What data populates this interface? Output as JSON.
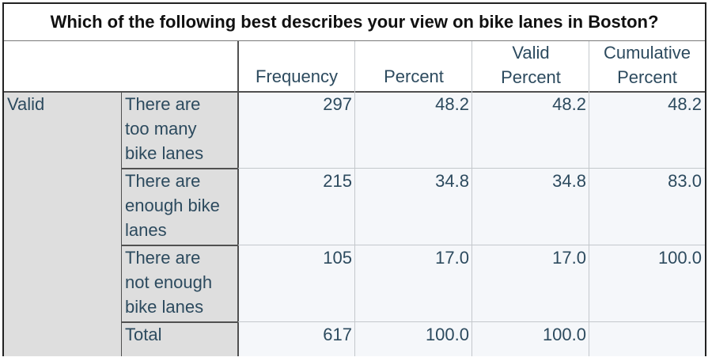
{
  "table": {
    "title": "Which of the following best describes your view on bike lanes in Boston?",
    "headers": {
      "frequency": "Frequency",
      "percent": "Percent",
      "valid_percent_1": "Valid",
      "valid_percent_2": "Percent",
      "cumulative_percent_1": "Cumulative",
      "cumulative_percent_2": "Percent"
    },
    "group_label": "Valid",
    "rows": [
      {
        "label": [
          "There are",
          "too many",
          "bike lanes"
        ],
        "frequency": "297",
        "percent": "48.2",
        "valid_percent": "48.2",
        "cumulative_percent": "48.2"
      },
      {
        "label": [
          "There are",
          "enough bike",
          "lanes"
        ],
        "frequency": "215",
        "percent": "34.8",
        "valid_percent": "34.8",
        "cumulative_percent": "83.0"
      },
      {
        "label": [
          "There are",
          "not enough",
          "bike lanes"
        ],
        "frequency": "105",
        "percent": "17.0",
        "valid_percent": "17.0",
        "cumulative_percent": "100.0"
      },
      {
        "label": [
          "Total"
        ],
        "frequency": "617",
        "percent": "100.0",
        "valid_percent": "100.0",
        "cumulative_percent": ""
      }
    ]
  }
}
